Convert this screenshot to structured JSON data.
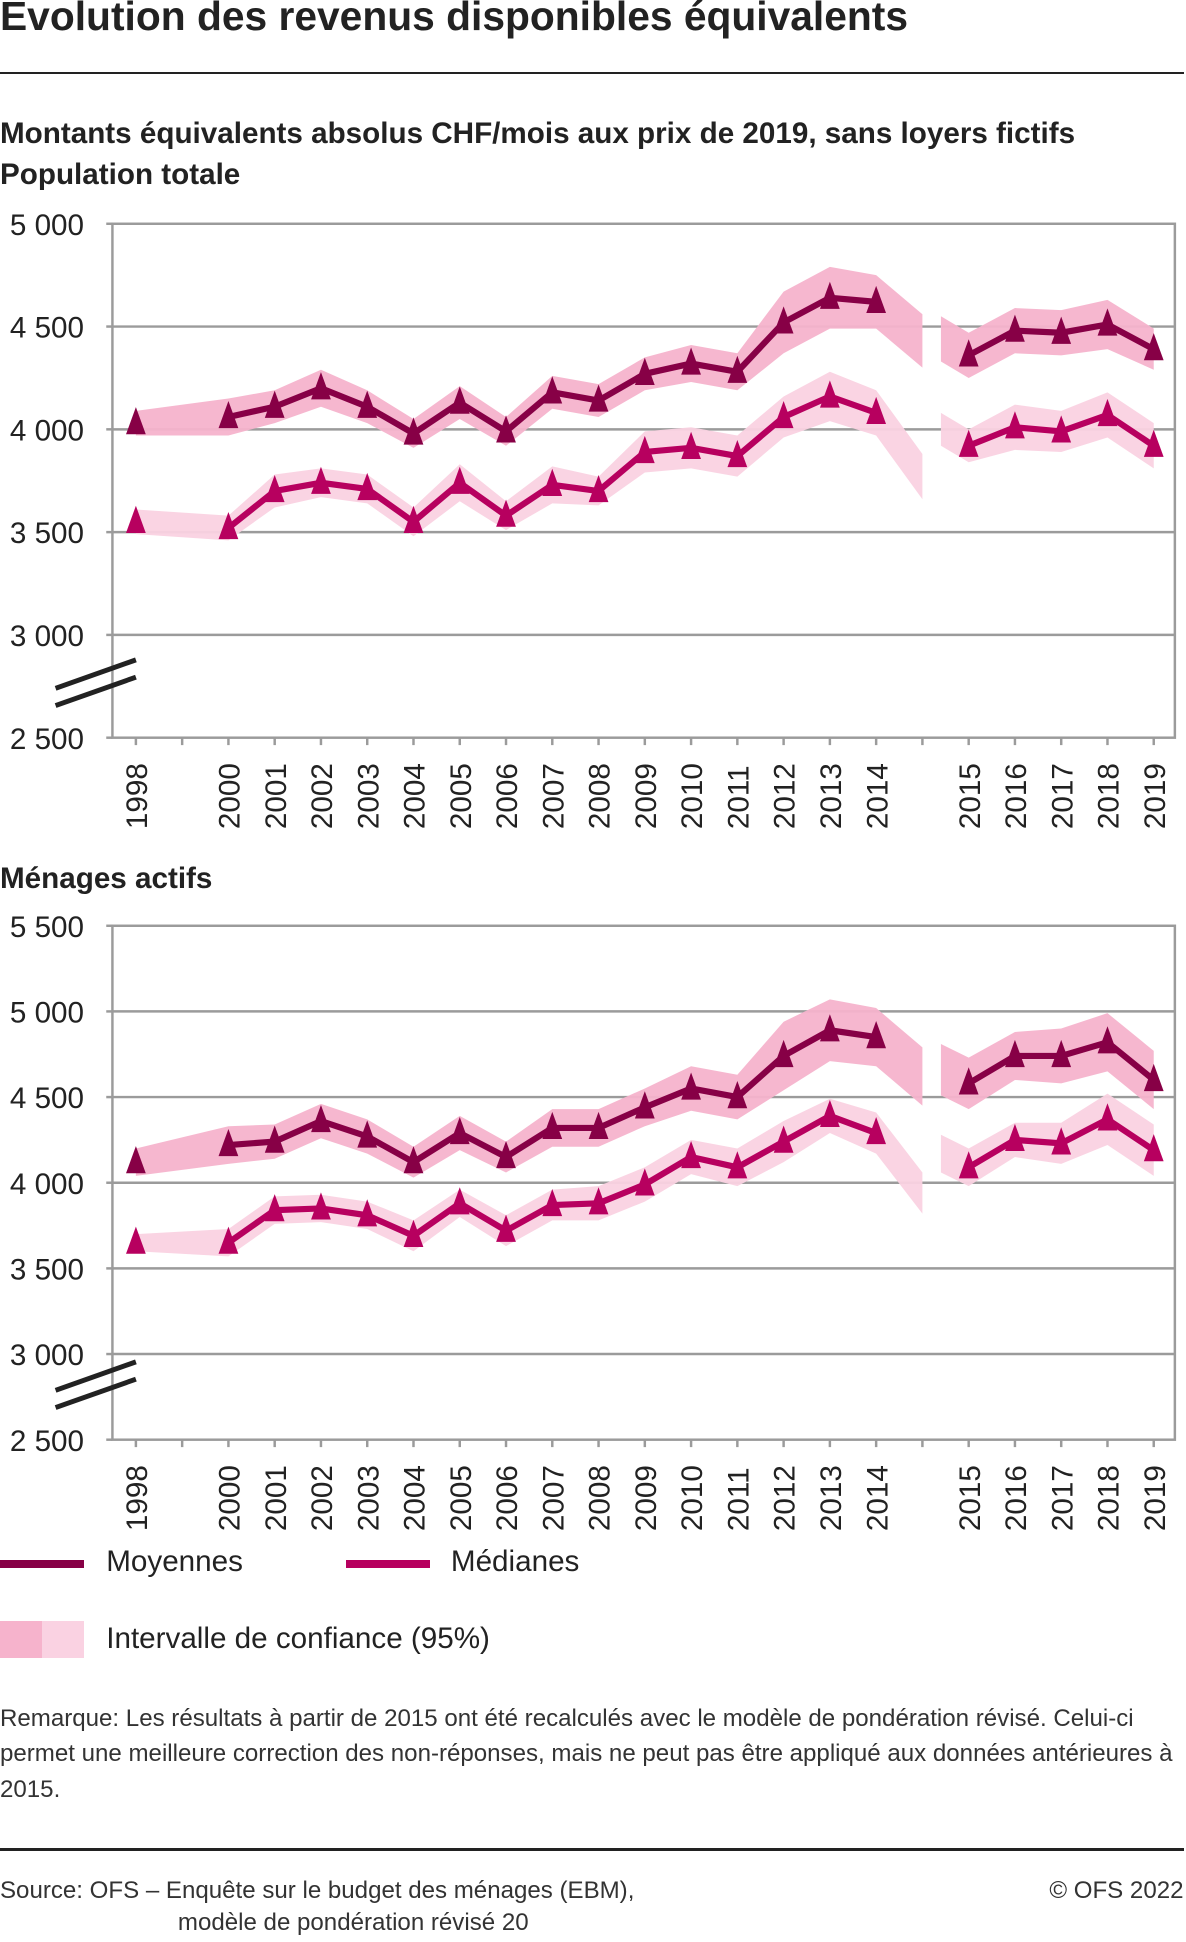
{
  "title": "Évolution des revenus disponibles équivalents",
  "subtitle": "Montants équivalents absolus CHF/mois aux prix de 2019, sans loyers fictifs",
  "legend": {
    "means": "Moyennes",
    "medians": "Médianes",
    "ci": "Intervalle de confiance (95%)"
  },
  "colors": {
    "means": "#870046",
    "medians": "#b7005f",
    "ci_means": "#f6b3cc",
    "ci_medians": "#fad2e2",
    "grid": "#9b9b9b"
  },
  "remark": "Remarque: Les résultats à partir de 2015 ont été recalculés avec le modèle de pondération révisé. Celui-ci permet une meilleure correction des non-réponses, mais ne peut pas  être appliqué aux données antérieures à 2015.",
  "source_line1": "Source: OFS – Enquête sur le budget des ménages (EBM),",
  "source_line2": "modèle de pondération révisé 20",
  "copyright": "© OFS 2022",
  "chart_data": [
    {
      "type": "line",
      "title": "Population totale",
      "ylim": [
        2500,
        5000
      ],
      "yticks": [
        "5 000",
        "4 500",
        "4 000",
        "3 500",
        "3 000",
        "2 500"
      ],
      "ytick_values": [
        5000,
        4500,
        4000,
        3500,
        3000,
        2500
      ],
      "categories": [
        "1998",
        "2000",
        "2001",
        "2002",
        "2003",
        "2004",
        "2005",
        "2006",
        "2007",
        "2008",
        "2009",
        "2010",
        "2011",
        "2012",
        "2013",
        "2014",
        "2015",
        "2016",
        "2017",
        "2018",
        "2019"
      ],
      "series": [
        {
          "name": "Moyennes",
          "values": [
            4030,
            4060,
            4110,
            4200,
            4110,
            3980,
            4130,
            3990,
            4180,
            4140,
            4270,
            4320,
            4280,
            4520,
            4640,
            4620,
            4360,
            4480,
            4470,
            4510,
            4390
          ],
          "ci_halfwidth": [
            60,
            90,
            80,
            90,
            80,
            70,
            80,
            70,
            80,
            80,
            80,
            90,
            90,
            150,
            150,
            130,
            110,
            110,
            110,
            120,
            100
          ]
        },
        {
          "name": "Médianes",
          "values": [
            3550,
            3520,
            3700,
            3740,
            3710,
            3550,
            3740,
            3580,
            3730,
            3700,
            3890,
            3910,
            3870,
            4060,
            4160,
            4080,
            3920,
            4010,
            3990,
            4070,
            3920
          ],
          "ci_halfwidth": [
            60,
            60,
            80,
            70,
            70,
            70,
            90,
            70,
            90,
            70,
            100,
            100,
            100,
            100,
            120,
            110,
            80,
            110,
            100,
            110,
            110
          ]
        }
      ]
    },
    {
      "type": "line",
      "title": "Ménages actifs",
      "ylim": [
        2500,
        5500
      ],
      "yticks": [
        "5 500",
        "5 000",
        "4 500",
        "4 000",
        "3 500",
        "3 000",
        "2 500"
      ],
      "ytick_values": [
        5500,
        5000,
        4500,
        4000,
        3500,
        3000,
        2500
      ],
      "categories": [
        "1998",
        "2000",
        "2001",
        "2002",
        "2003",
        "2004",
        "2005",
        "2006",
        "2007",
        "2008",
        "2009",
        "2010",
        "2011",
        "2012",
        "2013",
        "2014",
        "2015",
        "2016",
        "2017",
        "2018",
        "2019"
      ],
      "series": [
        {
          "name": "Moyennes",
          "values": [
            4120,
            4220,
            4240,
            4360,
            4270,
            4120,
            4290,
            4150,
            4320,
            4320,
            4440,
            4550,
            4500,
            4740,
            4890,
            4850,
            4580,
            4740,
            4740,
            4820,
            4600
          ],
          "ci_halfwidth": [
            80,
            110,
            100,
            100,
            100,
            90,
            100,
            90,
            110,
            110,
            110,
            130,
            130,
            200,
            180,
            170,
            150,
            140,
            160,
            170,
            170
          ]
        },
        {
          "name": "Médianes",
          "values": [
            3650,
            3650,
            3840,
            3850,
            3810,
            3690,
            3880,
            3720,
            3870,
            3880,
            3990,
            4150,
            4090,
            4240,
            4390,
            4290,
            4090,
            4250,
            4230,
            4370,
            4190
          ],
          "ci_halfwidth": [
            50,
            80,
            80,
            80,
            80,
            90,
            80,
            90,
            90,
            100,
            100,
            100,
            110,
            120,
            100,
            120,
            110,
            100,
            120,
            150,
            150
          ]
        }
      ]
    }
  ]
}
